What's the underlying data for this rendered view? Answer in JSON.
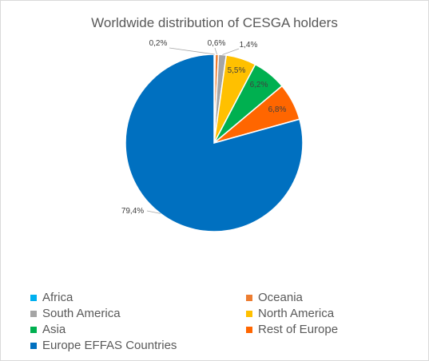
{
  "chart_data": {
    "type": "pie",
    "title": "Worldwide distribution of CESGA holders",
    "slices": [
      {
        "label": "Africa",
        "value": 0.2,
        "display": "0,2%",
        "color": "#00b0f0"
      },
      {
        "label": "Oceania",
        "value": 0.6,
        "display": "0,6%",
        "color": "#ed7d31"
      },
      {
        "label": "South America",
        "value": 1.4,
        "display": "1,4%",
        "color": "#a5a5a5"
      },
      {
        "label": "North America",
        "value": 5.5,
        "display": "5,5%",
        "color": "#ffc000"
      },
      {
        "label": "Asia",
        "value": 6.2,
        "display": "6,2%",
        "color": "#00b050"
      },
      {
        "label": "Rest of Europe",
        "value": 6.8,
        "display": "6,8%",
        "color": "#ff6600"
      },
      {
        "label": "Europe EFFAS Countries",
        "value": 79.4,
        "display": "79,4%",
        "color": "#0070c0"
      }
    ],
    "legend_position": "bottom"
  }
}
